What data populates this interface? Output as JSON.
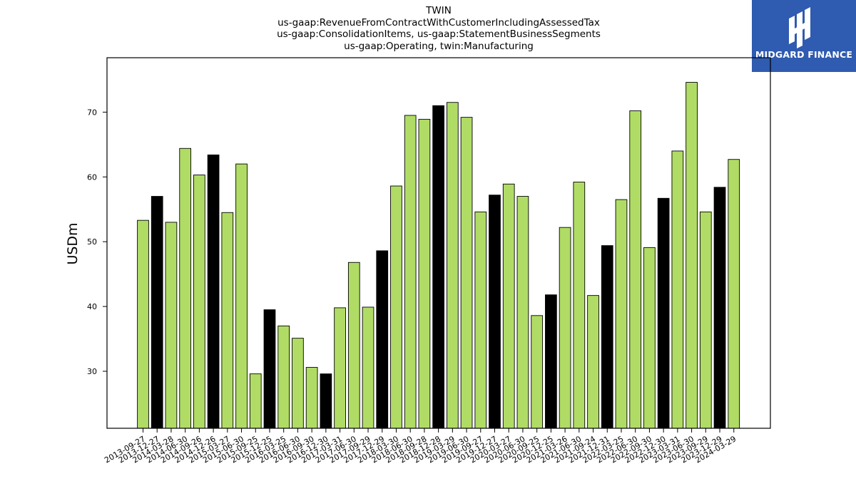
{
  "title_lines": [
    "TWIN",
    "us-gaap:RevenueFromContractWithCustomerIncludingAssessedTax",
    "us-gaap:ConsolidationItems, us-gaap:StatementBusinessSegments",
    "us-gaap:Operating, twin:Manufacturing"
  ],
  "logo": {
    "text": "MIDGARD FINANCE",
    "background": "#2f5bb0"
  },
  "chart_data": {
    "type": "bar",
    "ylabel": "USDm",
    "xlabel": "",
    "ylim": [
      21.2,
      78.4
    ],
    "yticks": [
      30,
      40,
      50,
      60,
      70
    ],
    "grid": false,
    "legend": "none",
    "colors": {
      "regular": "#b0dc66",
      "highlight": "#000000",
      "edge": "#000000"
    },
    "categories": [
      "2013-09-27",
      "2013-12-27",
      "2014-03-28",
      "2014-06-30",
      "2014-09-26",
      "2014-12-26",
      "2015-03-27",
      "2015-06-30",
      "2015-09-25",
      "2015-12-25",
      "2016-03-25",
      "2016-06-30",
      "2016-09-30",
      "2016-12-30",
      "2017-03-31",
      "2017-06-30",
      "2017-09-29",
      "2017-12-29",
      "2018-03-30",
      "2018-06-30",
      "2018-09-28",
      "2018-12-28",
      "2019-03-29",
      "2019-06-30",
      "2019-09-27",
      "2019-12-27",
      "2020-03-27",
      "2020-06-30",
      "2020-09-25",
      "2020-12-25",
      "2021-03-26",
      "2021-06-30",
      "2021-09-24",
      "2021-12-31",
      "2022-03-25",
      "2022-06-30",
      "2022-09-30",
      "2022-12-30",
      "2023-03-31",
      "2023-06-30",
      "2023-09-29",
      "2023-12-29",
      "2024-03-29"
    ],
    "values": [
      53.3,
      57.0,
      53.0,
      64.4,
      60.3,
      63.4,
      54.5,
      62.0,
      29.6,
      39.5,
      37.0,
      35.1,
      30.6,
      29.6,
      39.8,
      46.8,
      39.9,
      48.6,
      58.6,
      69.5,
      68.9,
      71.0,
      71.5,
      69.2,
      54.6,
      57.2,
      58.9,
      57.0,
      38.6,
      41.8,
      52.2,
      59.2,
      41.7,
      49.4,
      56.5,
      70.2,
      49.1,
      56.7,
      64.0,
      74.6,
      54.6,
      58.4,
      62.7
    ],
    "highlight": [
      false,
      true,
      false,
      false,
      false,
      true,
      false,
      false,
      false,
      true,
      false,
      false,
      false,
      true,
      false,
      false,
      false,
      true,
      false,
      false,
      false,
      true,
      false,
      false,
      false,
      true,
      false,
      false,
      false,
      true,
      false,
      false,
      false,
      true,
      false,
      false,
      false,
      true,
      false,
      false,
      false,
      true,
      false
    ]
  }
}
